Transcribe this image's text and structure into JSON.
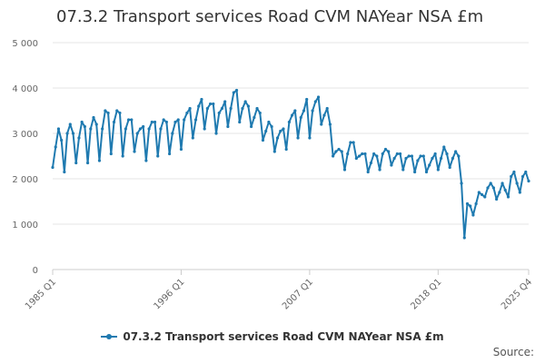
{
  "chart_data": {
    "type": "line",
    "title": "07.3.2 Transport services Road CVM NAYear NSA £m",
    "xlabel": "",
    "ylabel": "",
    "ylim": [
      0,
      5000
    ],
    "yticks": [
      0,
      1000,
      2000,
      3000,
      4000,
      5000
    ],
    "ytick_labels": [
      "0",
      "1 000",
      "2 000",
      "3 000",
      "4 000",
      "5 000"
    ],
    "xtick_labels": [
      "1985 Q1",
      "1996 Q1",
      "2007 Q1",
      "2018 Q1",
      "2025 Q4"
    ],
    "xtick_indices": [
      0,
      44,
      88,
      132,
      163
    ],
    "legend": "bottom-center",
    "grid": true,
    "color": "#1f7ab0",
    "series": [
      {
        "name": "07.3.2 Transport services Road CVM NAYear NSA £m",
        "values": [
          2250,
          2700,
          3100,
          2850,
          2150,
          3000,
          3200,
          3000,
          2350,
          2900,
          3250,
          3150,
          2350,
          3100,
          3350,
          3200,
          2400,
          3100,
          3500,
          3450,
          2550,
          3250,
          3500,
          3450,
          2500,
          3100,
          3300,
          3300,
          2600,
          3000,
          3100,
          3150,
          2400,
          3100,
          3250,
          3250,
          2500,
          3100,
          3300,
          3250,
          2550,
          3000,
          3250,
          3300,
          2650,
          3300,
          3450,
          3550,
          2900,
          3300,
          3600,
          3750,
          3100,
          3550,
          3650,
          3650,
          3000,
          3450,
          3550,
          3700,
          3150,
          3550,
          3900,
          3950,
          3250,
          3550,
          3700,
          3600,
          3150,
          3350,
          3550,
          3450,
          2850,
          3050,
          3250,
          3150,
          2600,
          2900,
          3050,
          3100,
          2650,
          3250,
          3400,
          3500,
          2900,
          3350,
          3500,
          3750,
          2900,
          3500,
          3700,
          3800,
          3200,
          3400,
          3550,
          3200,
          2500,
          2600,
          2650,
          2600,
          2200,
          2550,
          2800,
          2800,
          2450,
          2500,
          2550,
          2550,
          2150,
          2350,
          2550,
          2500,
          2200,
          2550,
          2650,
          2600,
          2300,
          2450,
          2550,
          2550,
          2200,
          2450,
          2500,
          2500,
          2150,
          2400,
          2500,
          2500,
          2150,
          2300,
          2450,
          2550,
          2200,
          2450,
          2700,
          2550,
          2250,
          2450,
          2600,
          2500,
          1900,
          700,
          1450,
          1400,
          1200,
          1450,
          1700,
          1650,
          1600,
          1800,
          1900,
          1800,
          1550,
          1700,
          1900,
          1750,
          1600,
          2050,
          2150,
          1900,
          1700,
          2050,
          2150,
          1950
        ]
      }
    ]
  },
  "source_label": "Source:"
}
